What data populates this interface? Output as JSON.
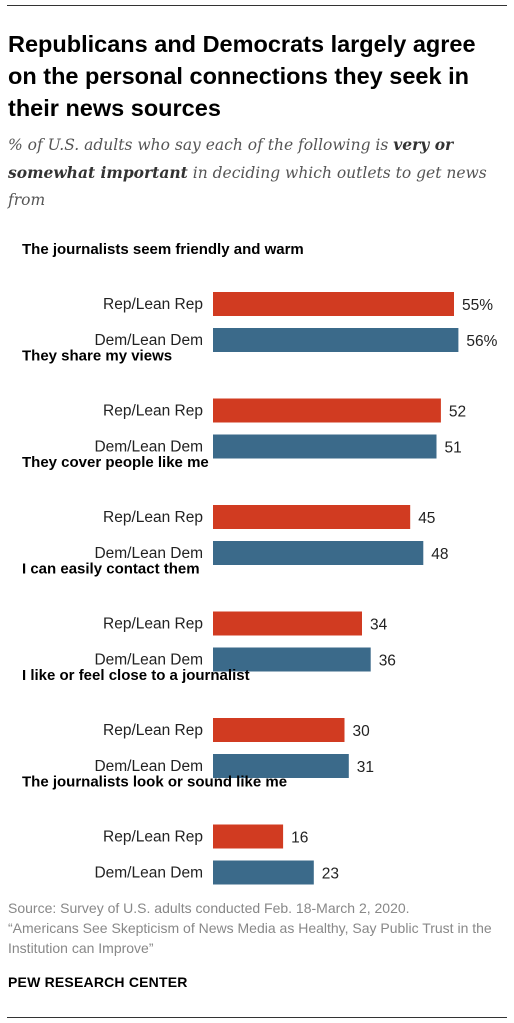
{
  "title": "Republicans and Democrats largely agree on the personal connections they seek in their news sources",
  "subtitle": {
    "before": "% of U.S. adults who say each of the following is ",
    "emphasis": "very or somewhat important",
    "after": " in deciding which outlets to get news from"
  },
  "source": {
    "line1": "Source: Survey of U.S. adults conducted Feb. 18-March 2, 2020.",
    "line2": "“Americans See Skepticism of News Media as Healthy, Say Public Trust in the Institution can Improve”"
  },
  "brand": "PEW RESEARCH CENTER",
  "chart_data": {
    "type": "bar",
    "orientation": "horizontal",
    "categories": [
      "The journalists seem friendly and warm",
      "They share my views",
      "They cover people like me",
      "I can easily contact them",
      "I like or feel close to a journalist",
      "The journalists look or sound like me"
    ],
    "series": [
      {
        "name": "Rep/Lean Rep",
        "color": "#d13b21",
        "values": [
          55,
          52,
          45,
          34,
          30,
          16
        ]
      },
      {
        "name": "Dem/Lean Dem",
        "color": "#3b6a8a",
        "values": [
          56,
          51,
          48,
          36,
          31,
          23
        ]
      }
    ],
    "value_labels": [
      [
        "55%",
        "56%"
      ],
      [
        "52",
        "51"
      ],
      [
        "45",
        "48"
      ],
      [
        "34",
        "36"
      ],
      [
        "30",
        "31"
      ],
      [
        "16",
        "23"
      ]
    ],
    "xlim": [
      0,
      100
    ],
    "grid": false,
    "legend": "none"
  }
}
